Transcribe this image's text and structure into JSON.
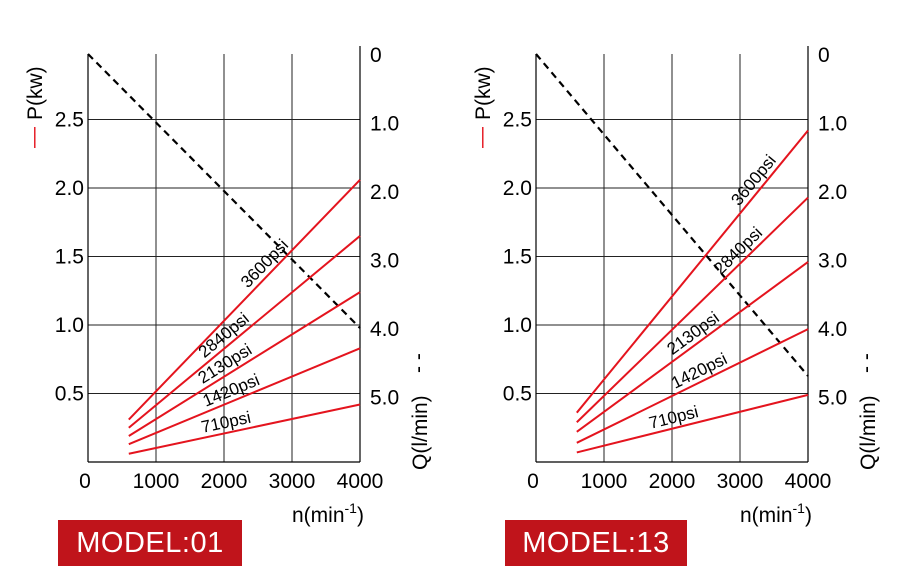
{
  "chart_data": [
    {
      "type": "line",
      "model_label": "MODEL:01",
      "x_ticks": [
        "0",
        "1000",
        "2000",
        "3000",
        "4000"
      ],
      "xlabel": "n(min",
      "xlabel_sup": "-1",
      "xlim": [
        0,
        4000
      ],
      "left_axis": {
        "label": "P(kw)",
        "legend_marker": "—",
        "ticks": [
          "0.5",
          "1.0",
          "1.5",
          "2.0",
          "2.5"
        ],
        "ylim": [
          0,
          3.0
        ]
      },
      "right_axis": {
        "label": "Q(l/min)",
        "legend_marker": "- -",
        "ticks": [
          "0",
          "1.0",
          "2.0",
          "3.0",
          "4.0",
          "5.0"
        ],
        "ylim": [
          6.0,
          0
        ],
        "inverted": true
      },
      "grid": true,
      "series": [
        {
          "name": "3600psi",
          "color": "#e4141e",
          "x": [
            600,
            4000
          ],
          "y": [
            0.31,
            2.06
          ]
        },
        {
          "name": "2840psi",
          "color": "#e4141e",
          "x": [
            600,
            4000
          ],
          "y": [
            0.25,
            1.65
          ]
        },
        {
          "name": "2130psi",
          "color": "#e4141e",
          "x": [
            600,
            4000
          ],
          "y": [
            0.19,
            1.24
          ]
        },
        {
          "name": "1420psi",
          "color": "#e4141e",
          "x": [
            600,
            4000
          ],
          "y": [
            0.13,
            0.83
          ]
        },
        {
          "name": "710psi",
          "color": "#e4141e",
          "x": [
            600,
            4000
          ],
          "y": [
            0.06,
            0.42
          ]
        }
      ],
      "flow_line": {
        "axis": "right",
        "style": "dashed",
        "color": "#000000",
        "x": [
          0,
          4000
        ],
        "y": [
          0,
          4.0
        ]
      }
    },
    {
      "type": "line",
      "model_label": "MODEL:13",
      "x_ticks": [
        "0",
        "1000",
        "2000",
        "3000",
        "4000"
      ],
      "xlabel": "n(min",
      "xlabel_sup": "-1",
      "xlim": [
        0,
        4000
      ],
      "left_axis": {
        "label": "P(kw)",
        "legend_marker": "—",
        "ticks": [
          "0.5",
          "1.0",
          "1.5",
          "2.0",
          "2.5"
        ],
        "ylim": [
          0,
          3.0
        ]
      },
      "right_axis": {
        "label": "Q(l/min)",
        "legend_marker": "- -",
        "ticks": [
          "0",
          "1.0",
          "2.0",
          "3.0",
          "4.0",
          "5.0"
        ],
        "ylim": [
          6.0,
          0
        ],
        "inverted": true
      },
      "grid": true,
      "series": [
        {
          "name": "3600psi",
          "color": "#e4141e",
          "x": [
            600,
            4000
          ],
          "y": [
            0.36,
            2.42
          ]
        },
        {
          "name": "2840psi",
          "color": "#e4141e",
          "x": [
            600,
            4000
          ],
          "y": [
            0.29,
            1.93
          ]
        },
        {
          "name": "2130psi",
          "color": "#e4141e",
          "x": [
            600,
            4000
          ],
          "y": [
            0.22,
            1.46
          ]
        },
        {
          "name": "1420psi",
          "color": "#e4141e",
          "x": [
            600,
            4000
          ],
          "y": [
            0.14,
            0.97
          ]
        },
        {
          "name": "710psi",
          "color": "#e4141e",
          "x": [
            600,
            4000
          ],
          "y": [
            0.07,
            0.49
          ]
        }
      ],
      "flow_line": {
        "axis": "right",
        "style": "dashed",
        "color": "#000000",
        "x": [
          0,
          4000
        ],
        "y": [
          0,
          4.7
        ]
      }
    }
  ]
}
